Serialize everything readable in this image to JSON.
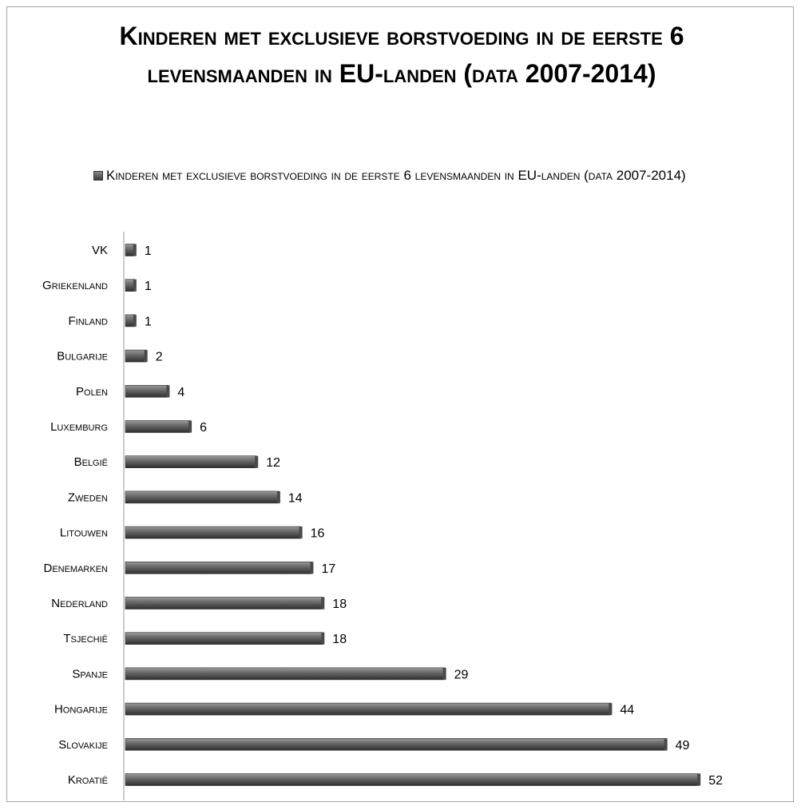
{
  "chart_data": {
    "type": "bar",
    "orientation": "horizontal",
    "title": "Kinderen met exclusieve borstvoeding in de eerste 6 levensmaanden in EU-landen (data 2007-2014)",
    "legend": {
      "placement": "top",
      "entries": [
        "Kinderen met exclusieve borstvoeding in de eerste 6 levensmaanden in EU-landen (data 2007-2014)"
      ]
    },
    "categories": [
      "VK",
      "Griekenland",
      "Finland",
      "Bulgarije",
      "Polen",
      "Luxemburg",
      "België",
      "Zweden",
      "Litouwen",
      "Denemarken",
      "Nederland",
      "Tsjechië",
      "Spanje",
      "Hongarije",
      "Slovakije",
      "Kroatië"
    ],
    "series": [
      {
        "name": "Kinderen met exclusieve borstvoeding in de eerste 6 levensmaanden in EU-landen (data 2007-2014)",
        "values": [
          1,
          1,
          1,
          2,
          4,
          6,
          12,
          14,
          16,
          17,
          18,
          18,
          29,
          44,
          49,
          52
        ]
      }
    ],
    "xlim": [
      0,
      52
    ],
    "grid": false,
    "bar_color": "#5a5a5a"
  }
}
